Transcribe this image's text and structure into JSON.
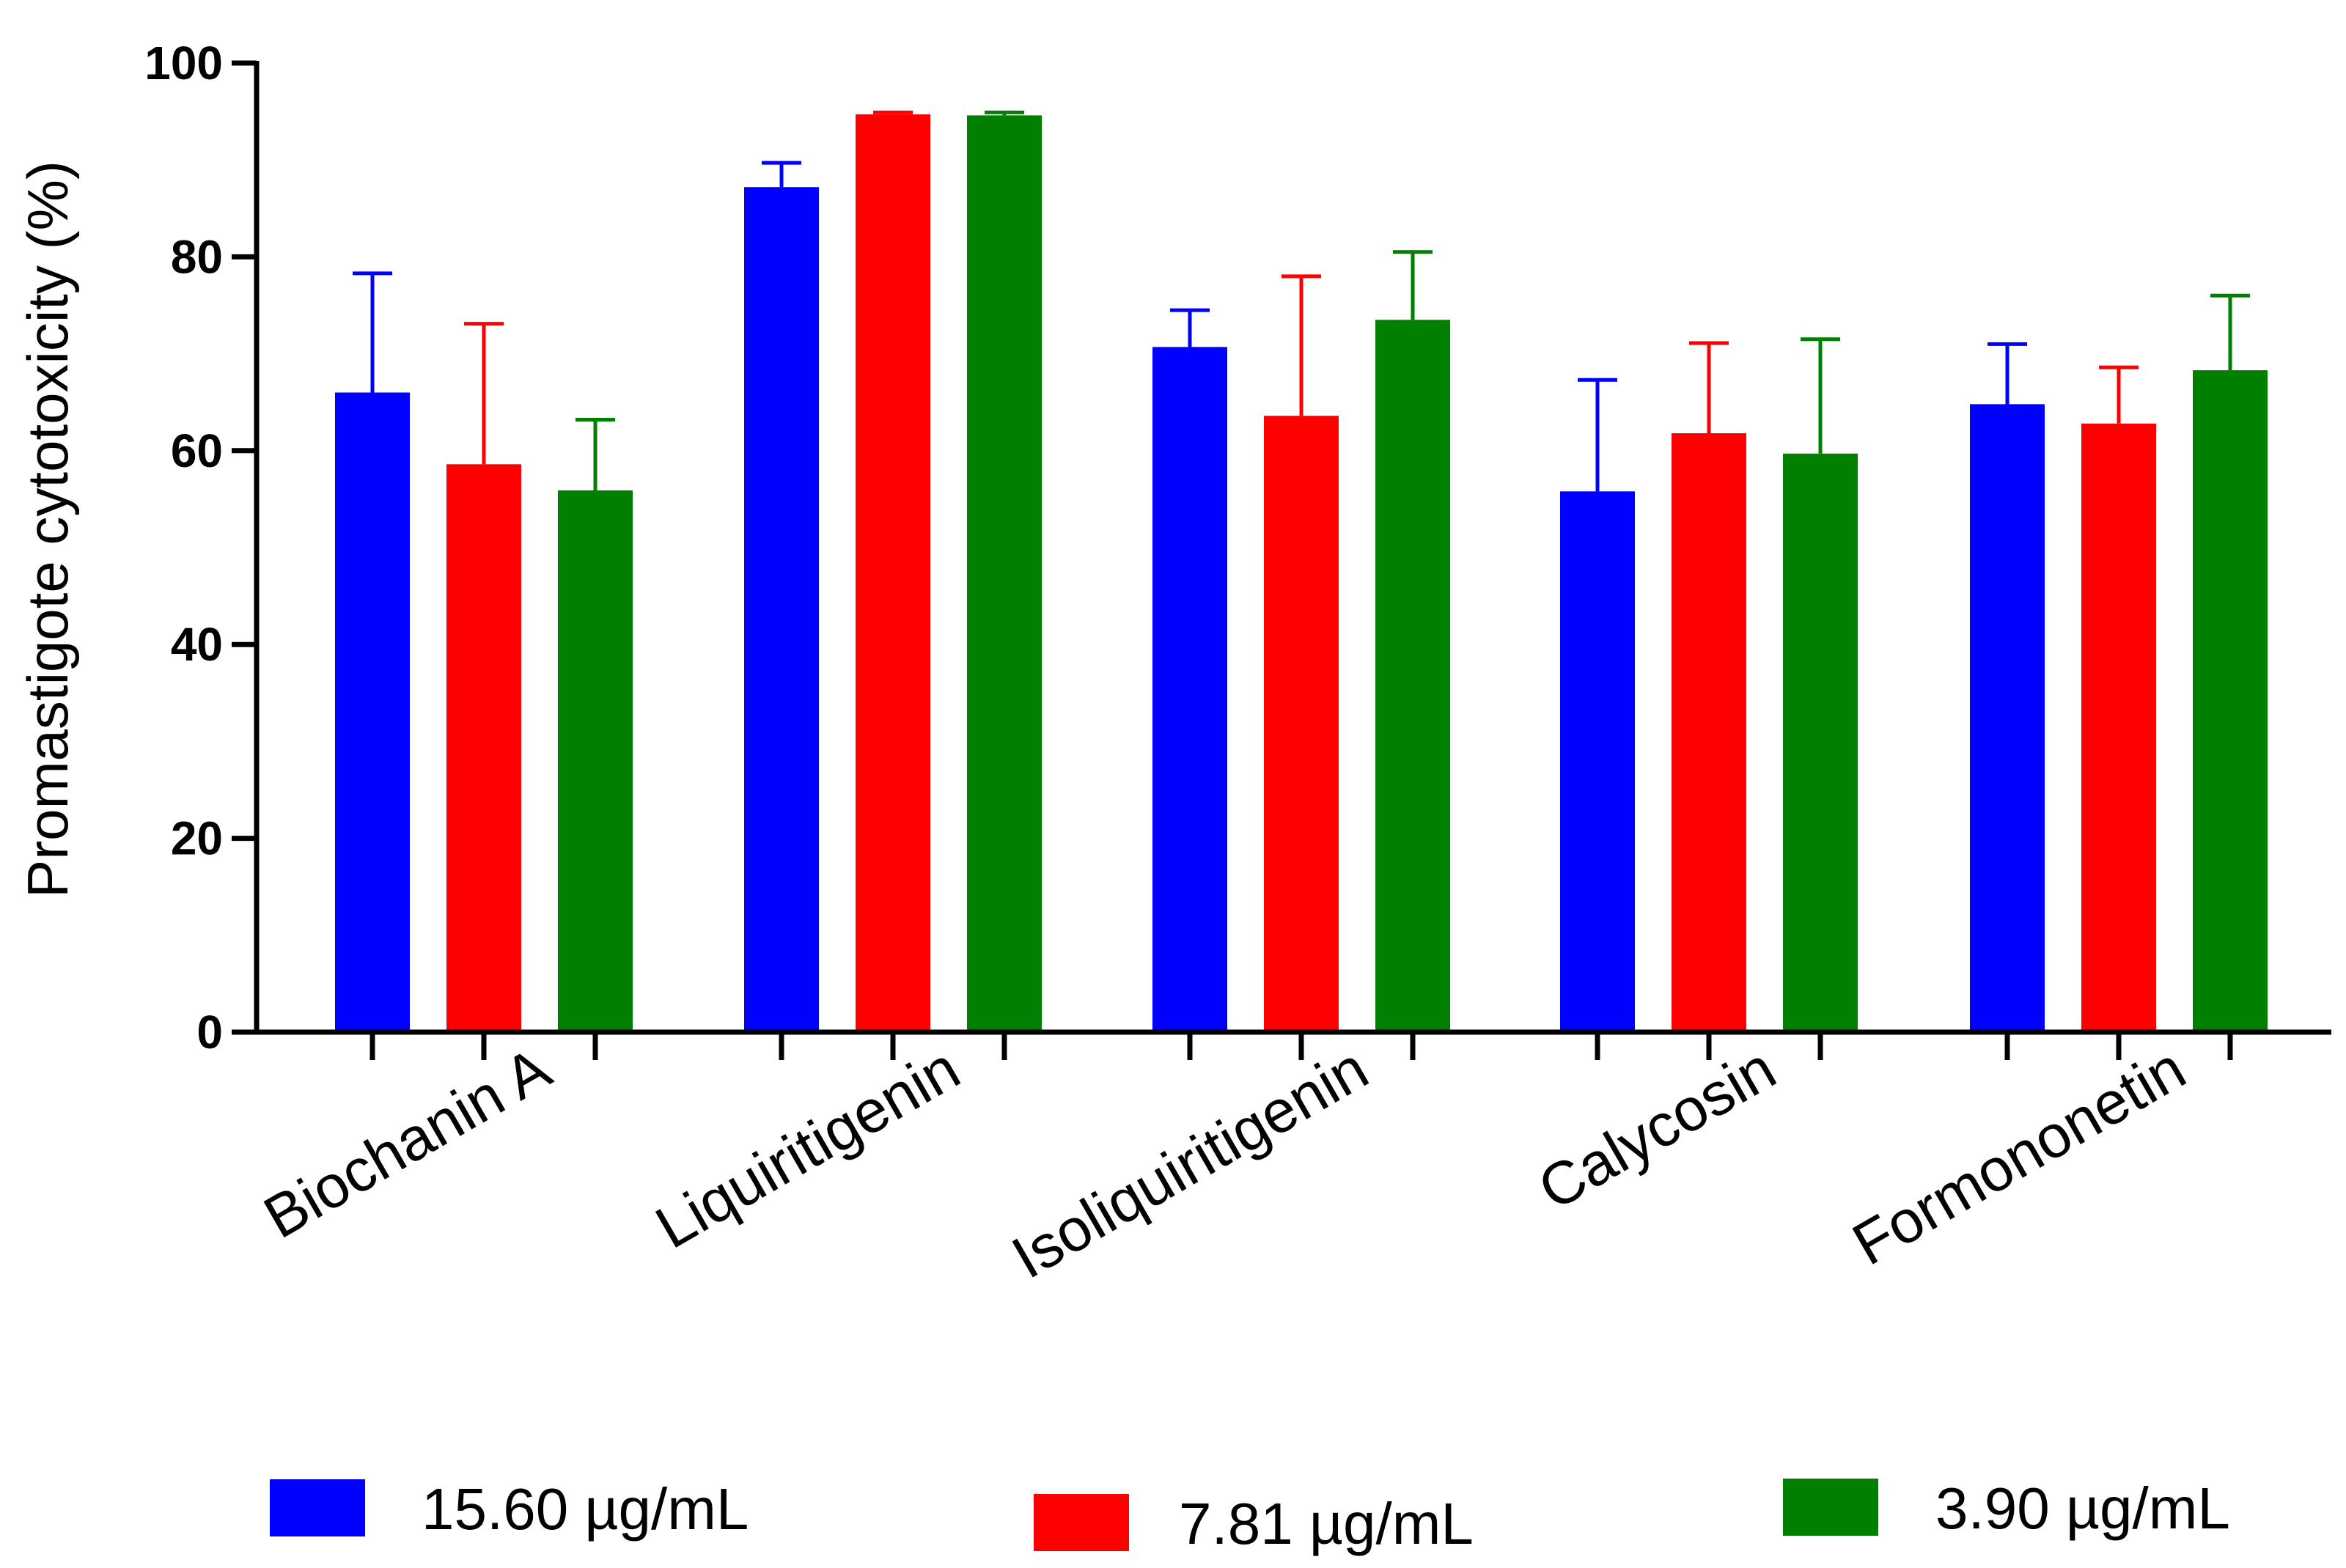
{
  "chart_data": {
    "type": "bar",
    "title": "",
    "xlabel": "",
    "ylabel": "Promastigote cytotoxicity (%)",
    "ylim": [
      0,
      100
    ],
    "yticks": [
      "0",
      "20",
      "40",
      "60",
      "80",
      "100"
    ],
    "categories": [
      "Biochanin A",
      "Liquiritigenin",
      "Isoliquiritigenin",
      "Calycosin",
      "Formononetin"
    ],
    "series": [
      {
        "name": "15.60 µg/mL",
        "color": "#0000FF",
        "values": [
          66.0,
          87.2,
          70.7,
          55.8,
          64.8
        ],
        "errors": [
          12.3,
          2.5,
          3.8,
          11.5,
          6.2
        ]
      },
      {
        "name": "7.81 µg/mL",
        "color": "#FF0000",
        "values": [
          58.6,
          94.7,
          63.6,
          61.8,
          62.8
        ],
        "errors": [
          14.5,
          0.2,
          14.4,
          9.3,
          5.8
        ]
      },
      {
        "name": "3.90 µg/mL",
        "color": "#007F00",
        "values": [
          55.9,
          94.6,
          73.5,
          59.7,
          68.3
        ],
        "errors": [
          7.3,
          0.3,
          7.0,
          11.8,
          7.7
        ]
      }
    ],
    "legend_position": "bottom"
  }
}
